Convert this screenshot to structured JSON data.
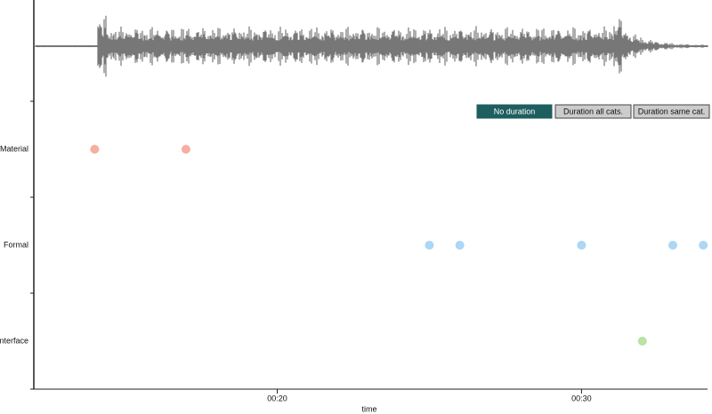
{
  "chart_data": {
    "type": "scatter",
    "xlabel": "time",
    "xlim": [
      12,
      34.2
    ],
    "xticks": [
      {
        "value": 20,
        "label": "00:20"
      },
      {
        "value": 30,
        "label": "00:30"
      }
    ],
    "series": [
      {
        "name": "Material",
        "color": "#f4a290",
        "values": [
          14.0,
          17.0
        ]
      },
      {
        "name": "Formal",
        "color": "#9fd0f4",
        "values": [
          25.0,
          26.0,
          30.0,
          33.0,
          34.0
        ]
      },
      {
        "name": "Interface",
        "color": "#aede94",
        "values": [
          32.0
        ]
      }
    ],
    "buttons": [
      {
        "label": "No duration",
        "active": true
      },
      {
        "label": "Duration all cats.",
        "active": false
      },
      {
        "label": "Duration same cat.",
        "active": false
      }
    ]
  }
}
